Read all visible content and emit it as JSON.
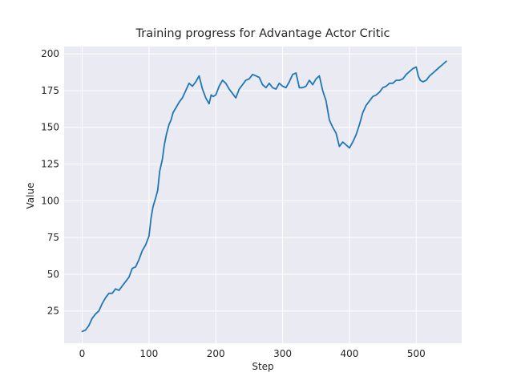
{
  "chart_data": {
    "type": "line",
    "title": "Training progress for Advantage Actor Critic",
    "xlabel": "Step",
    "ylabel": "Value",
    "xlim": [
      -27,
      568
    ],
    "ylim": [
      3,
      205
    ],
    "xticks": [
      0,
      100,
      200,
      300,
      400,
      500
    ],
    "yticks": [
      25,
      50,
      75,
      100,
      125,
      150,
      175,
      200
    ],
    "grid": true,
    "colors": {
      "line": "#1f77b4",
      "plot_bg": "#eaeaf2",
      "grid": "#ffffff"
    },
    "series": [
      {
        "x": [
          0,
          5,
          10,
          15,
          20,
          25,
          30,
          35,
          40,
          45,
          50,
          55,
          60,
          65,
          70,
          75,
          80,
          85,
          90,
          95,
          100,
          103,
          106,
          110,
          113,
          116,
          120,
          123,
          126,
          130,
          133,
          136,
          140,
          145,
          150,
          155,
          160,
          165,
          170,
          175,
          180,
          185,
          190,
          193,
          196,
          200,
          205,
          210,
          215,
          220,
          225,
          230,
          235,
          240,
          245,
          250,
          255,
          260,
          265,
          270,
          275,
          280,
          285,
          290,
          295,
          300,
          305,
          310,
          315,
          320,
          325,
          330,
          335,
          340,
          345,
          350,
          355,
          360,
          365,
          370,
          375,
          380,
          385,
          390,
          395,
          400,
          405,
          410,
          415,
          420,
          425,
          430,
          435,
          440,
          445,
          450,
          455,
          460,
          465,
          470,
          475,
          480,
          485,
          490,
          495,
          500,
          503,
          506,
          510,
          515,
          520,
          525,
          530,
          535,
          540,
          545
        ],
        "y": [
          11,
          12,
          15,
          20,
          23,
          25,
          30,
          34,
          37,
          37,
          40,
          39,
          42,
          45,
          48,
          54,
          55,
          60,
          66,
          70,
          76,
          88,
          96,
          102,
          107,
          120,
          128,
          138,
          145,
          152,
          155,
          160,
          163,
          167,
          170,
          175,
          180,
          178,
          181,
          185,
          176,
          170,
          166,
          172,
          171,
          172,
          178,
          182,
          180,
          176,
          173,
          170,
          176,
          179,
          182,
          183,
          186,
          185,
          184,
          179,
          177,
          180,
          177,
          176,
          180,
          178,
          177,
          181,
          186,
          187,
          177,
          177,
          178,
          182,
          179,
          183,
          185,
          175,
          168,
          155,
          150,
          146,
          137,
          140,
          138,
          136,
          140,
          145,
          152,
          160,
          165,
          168,
          171,
          172,
          174,
          177,
          178,
          180,
          180,
          182,
          182,
          183,
          186,
          188,
          190,
          191,
          185,
          182,
          181,
          182,
          185,
          187,
          189,
          191,
          193,
          195
        ]
      }
    ]
  }
}
